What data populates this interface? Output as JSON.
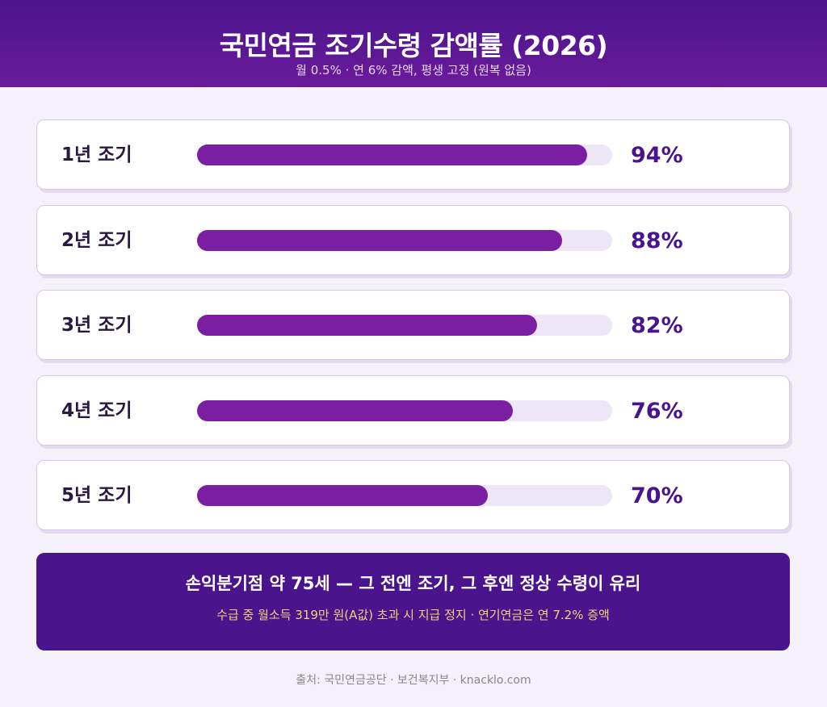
{
  "header": {
    "title": "국민연금 조기수령 감액률 (2026)",
    "subtitle": "월 0.5% · 연 6% 감액, 평생 고정 (원복 없음)"
  },
  "chart_data": {
    "type": "bar",
    "orientation": "horizontal",
    "title": "국민연금 조기수령 감액률 (2026)",
    "categories": [
      "1년 조기",
      "2년 조기",
      "3년 조기",
      "4년 조기",
      "5년 조기"
    ],
    "values": [
      94,
      88,
      82,
      76,
      70
    ],
    "value_labels": [
      "94%",
      "88%",
      "82%",
      "76%",
      "70%"
    ],
    "xlim": [
      0,
      100
    ],
    "grid": false
  },
  "banner": {
    "headline": "손익분기점 약 75세 — 그 전엔 조기, 그 후엔 정상 수령이 유리",
    "detail": "수급 중 월소득 319만 원(A값) 초과 시 지급 정지 · 연기연금은 연 7.2% 증액"
  },
  "source": "출처: 국민연금공단 · 보건복지부 · knacklo.com",
  "colors": {
    "header": "#4a148c",
    "bar_fill": "#7b1fa2",
    "bar_track": "#ede6f6",
    "banner": "#4a148c",
    "banner_detail": "#f3d27a"
  }
}
